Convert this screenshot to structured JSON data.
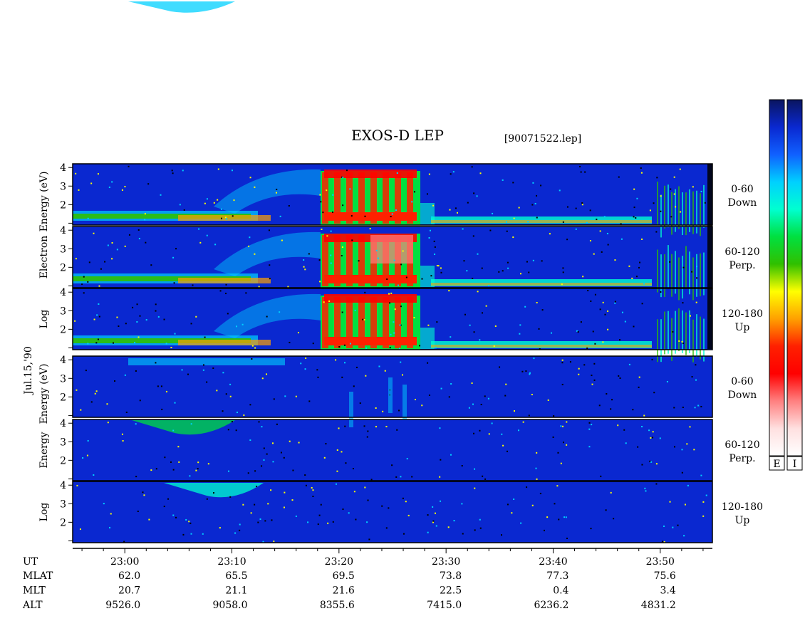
{
  "chart_data": {
    "type": "spectrogram",
    "title": "EXOS-D LEP",
    "subtitle": "[90071522.lep]",
    "date_label": "Jul.15,'90",
    "xlim": [
      1375.13,
      1434.87
    ],
    "xticks": [
      {
        "value": 1380,
        "label": "23:00"
      },
      {
        "value": 1390,
        "label": "23:10"
      },
      {
        "value": 1400,
        "label": "23:20"
      },
      {
        "value": 1410,
        "label": "23:30"
      },
      {
        "value": 1420,
        "label": "23:40"
      },
      {
        "value": 1430,
        "label": "23:50"
      }
    ],
    "xminorticks": [
      1376,
      1378,
      1382,
      1384,
      1386,
      1388,
      1392,
      1394,
      1396,
      1398,
      1402,
      1404,
      1406,
      1408,
      1412,
      1414,
      1416,
      1418,
      1422,
      1424,
      1426,
      1428,
      1432,
      1434
    ],
    "ylim": [
      0.9,
      4.2
    ],
    "yticks": [
      2,
      3,
      4
    ],
    "yminorticks": [
      1
    ],
    "groups": [
      {
        "ylabel": [
          "Energy (eV)",
          "Electron",
          "Log"
        ],
        "panels": [
          {
            "label": [
              "0-60",
              "Down"
            ]
          },
          {
            "label": [
              "60-120",
              "Perp."
            ]
          },
          {
            "label": [
              "120-180",
              "Up"
            ]
          }
        ]
      },
      {
        "ylabel": [
          "Energy (eV)",
          "Energy",
          "Log"
        ],
        "panels": [
          {
            "label": [
              "0-60",
              "Down"
            ]
          },
          {
            "label": [
              "60-120",
              "Perp."
            ]
          },
          {
            "label": [
              "120-180",
              "Up"
            ]
          }
        ]
      }
    ],
    "colorscale": [
      "#0a1560",
      "#0a28d0",
      "#1060ff",
      "#00d0ff",
      "#00ffd0",
      "#00e040",
      "#30c000",
      "#ffff00",
      "#ffa000",
      "#ff2000",
      "#ff0000",
      "#ff8080",
      "#ffe0e0",
      "#ffffff"
    ],
    "colorbars": [
      {
        "label": "E"
      },
      {
        "label": "I"
      }
    ],
    "ephemeris": {
      "x_label": "UT",
      "rows": [
        {
          "label": "MLAT",
          "values": [
            "62.0",
            "65.5",
            "69.5",
            "73.8",
            "77.3",
            "75.6"
          ]
        },
        {
          "label": "MLT",
          "values": [
            "20.7",
            "21.1",
            "21.6",
            "22.5",
            "0.4",
            "3.4"
          ]
        },
        {
          "label": "ALT",
          "values": [
            "9526.0",
            "9058.0",
            "8355.6",
            "7415.0",
            "6236.2",
            "4831.2"
          ]
        }
      ]
    }
  }
}
